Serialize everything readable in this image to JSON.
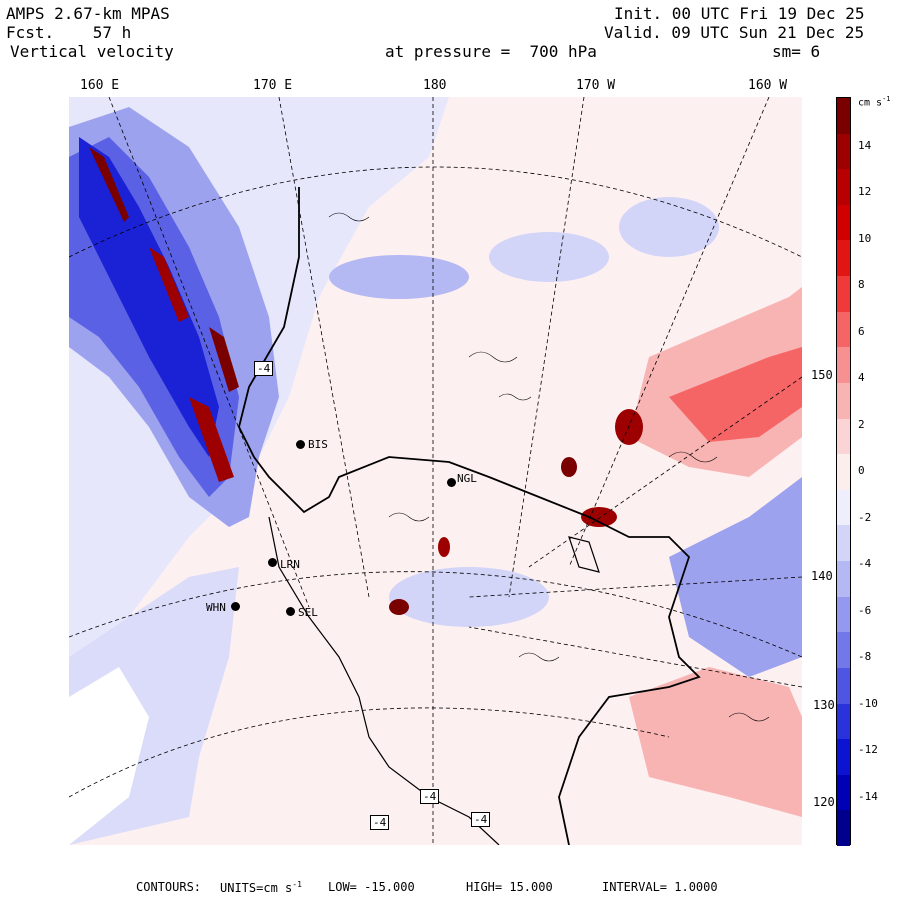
{
  "header": {
    "model": "AMPS 2.67-km MPAS",
    "forecast": "Fcst.    57 h",
    "field": "Vertical velocity",
    "init": "Init. 00 UTC Fri 19 Dec 25",
    "valid": "Valid. 09 UTC Sun 21 Dec 25",
    "pressure": "at pressure =  700 hPa",
    "smoothing": "sm= 6"
  },
  "lon_labels": [
    "160 E",
    "170 E",
    "180",
    "170 W",
    "160 W"
  ],
  "lat_labels": [
    "150 W",
    "140 W",
    "130 W",
    "120 W"
  ],
  "colorbar": {
    "units_label": "cm s",
    "units_exp": "-1",
    "ticks": [
      "14",
      "12",
      "10",
      "8",
      "6",
      "4",
      "2",
      "0",
      "-2",
      "-4",
      "-6",
      "-8",
      "-10",
      "-12",
      "-14"
    ],
    "colors": [
      "#7a0000",
      "#9c0000",
      "#b80000",
      "#d00000",
      "#e21515",
      "#f03a3a",
      "#f56565",
      "#f79090",
      "#f8b3b3",
      "#fbd5d5",
      "#fdeeee",
      "#eeeefc",
      "#d2d4f8",
      "#b4b8f3",
      "#9498ee",
      "#7278e8",
      "#4d55e2",
      "#2a32dc",
      "#0c14d2",
      "#0000b4",
      "#00008c"
    ]
  },
  "stations": [
    {
      "id": "BIS"
    },
    {
      "id": "NGL"
    },
    {
      "id": "LRN"
    },
    {
      "id": "WHN"
    },
    {
      "id": "SEL"
    }
  ],
  "markers": [
    "-4",
    "-4",
    "-4",
    "-4"
  ],
  "footer": {
    "contours": "CONTOURS:",
    "units": "UNITS=cm s",
    "units_exp": "-1",
    "low": "LOW= -15.000",
    "high": "HIGH=  15.000",
    "interval": "INTERVAL=   1.0000"
  }
}
